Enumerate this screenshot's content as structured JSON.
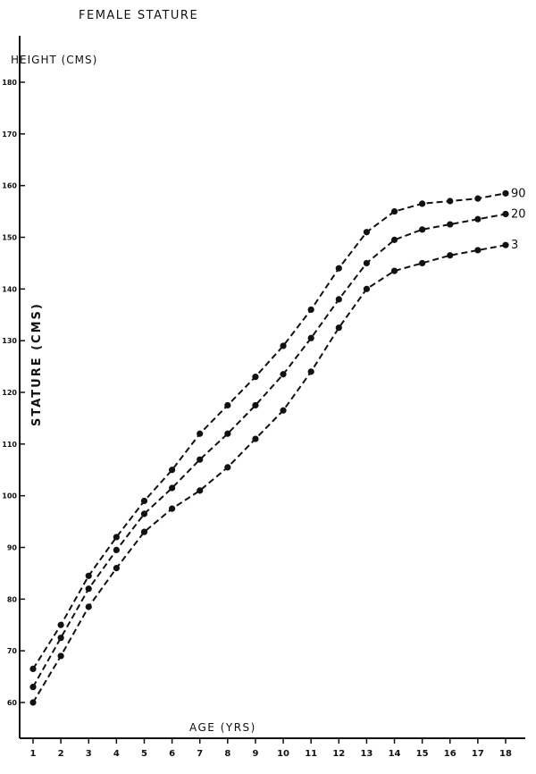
{
  "chart_data": {
    "type": "line",
    "title": "FEMALE STATURE",
    "ylabel_top": "HEIGHT (CMS)",
    "ylabel_side": "STATURE (CMS)",
    "xlabel": "AGE (YRS)",
    "x": [
      1,
      2,
      3,
      4,
      5,
      6,
      7,
      8,
      9,
      10,
      11,
      12,
      13,
      14,
      15,
      16,
      17,
      18
    ],
    "xticks": [
      "1",
      "2",
      "3",
      "4",
      "5",
      "6",
      "7",
      "8",
      "9",
      "10",
      "11",
      "12",
      "13",
      "14",
      "15",
      "16",
      "17",
      "18"
    ],
    "yticks": [
      {
        "value": 60,
        "label": "60"
      },
      {
        "value": 70,
        "label": "70"
      },
      {
        "value": 80,
        "label": "80"
      },
      {
        "value": 90,
        "label": "90"
      },
      {
        "value": 100,
        "label": "100"
      },
      {
        "value": 110,
        "label": "110"
      },
      {
        "value": 120,
        "label": "120"
      },
      {
        "value": 130,
        "label": "130"
      },
      {
        "value": 140,
        "label": "140"
      },
      {
        "value": 150,
        "label": "150"
      },
      {
        "value": 160,
        "label": "160"
      },
      {
        "value": 170,
        "label": "170"
      },
      {
        "value": 180,
        "label": "180"
      }
    ],
    "ylim": [
      57,
      183
    ],
    "series": [
      {
        "name": "90",
        "values": [
          66.5,
          75,
          84.5,
          92,
          99,
          105,
          112,
          117.5,
          123,
          129,
          136,
          144,
          151,
          155,
          156.5,
          157,
          157.5,
          158.5
        ]
      },
      {
        "name": "20",
        "values": [
          63,
          72.5,
          82,
          89.5,
          96.5,
          101.5,
          107,
          112,
          117.5,
          123.5,
          130.5,
          138,
          145,
          149.5,
          151.5,
          152.5,
          153.5,
          154.5
        ]
      },
      {
        "name": "3",
        "values": [
          60,
          69,
          78.5,
          86,
          93,
          97.5,
          101,
          105.5,
          111,
          116.5,
          124,
          132.5,
          140,
          143.5,
          145,
          146.5,
          147.5,
          148.5
        ]
      }
    ],
    "grid": false,
    "legend": "none"
  }
}
